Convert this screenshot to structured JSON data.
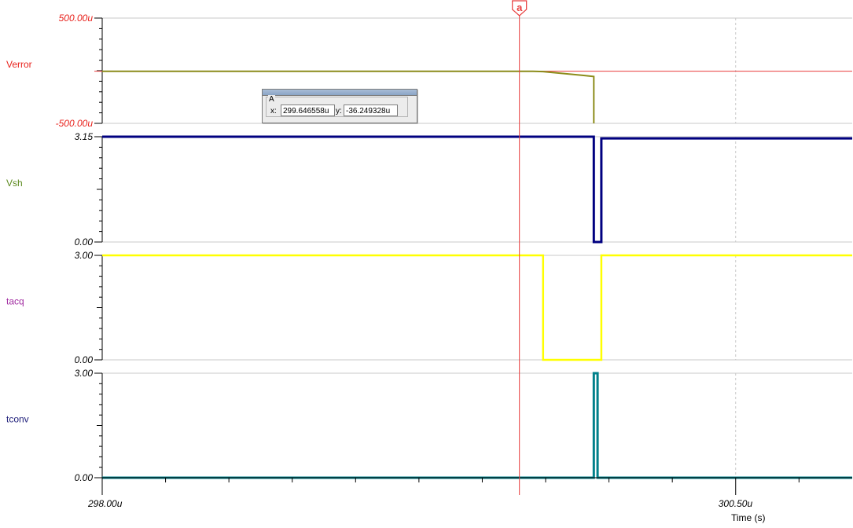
{
  "colors": {
    "verror_label": "#e8221c",
    "vsh_label": "#5c8a1e",
    "tacq_label": "#a02aa0",
    "tconv_label": "#1f1f7a",
    "verror_trace": "#8c8c1a",
    "vsh_trace": "#000080",
    "tacq_trace": "#ffff00",
    "tconv_trace": "#00808a",
    "cursor": "#e83c3c"
  },
  "cursor": {
    "marker": "a",
    "box_title": "A",
    "x_label": "x:",
    "x_value": "299.646558u",
    "y_label": "y:",
    "y_value": "-36.249328u"
  },
  "chart_data": {
    "type": "line",
    "xlabel": "Time (s)",
    "x_unit": "s",
    "xlim": [
      298.0,
      300.96
    ],
    "x_ticks": [
      {
        "value": 298.0,
        "label": "298.00u"
      },
      {
        "value": 300.5,
        "label": "300.50u"
      }
    ],
    "cursor_x": 299.646558,
    "panels": [
      {
        "name": "Verror",
        "ylim": [
          -500,
          500
        ],
        "y_ticks": [
          {
            "value": 500,
            "label": "500.00u"
          },
          {
            "value": -500,
            "label": "-500.00u"
          }
        ],
        "cursor_hline": -5,
        "series": [
          {
            "name": "Verror",
            "points": [
              [
                298.0,
                -5
              ],
              [
                299.7,
                -5
              ],
              [
                299.74,
                -8
              ],
              [
                299.9,
                -45
              ],
              [
                299.94,
                -55
              ],
              [
                299.94,
                -500
              ]
            ]
          }
        ]
      },
      {
        "name": "Vsh",
        "ylim": [
          0,
          3.15
        ],
        "y_ticks": [
          {
            "value": 3.15,
            "label": "3.15"
          },
          {
            "value": 0,
            "label": "0.00"
          }
        ],
        "series": [
          {
            "name": "Vsh",
            "points": [
              [
                298.0,
                3.15
              ],
              [
                299.94,
                3.15
              ],
              [
                299.94,
                0
              ],
              [
                299.97,
                0
              ],
              [
                299.97,
                3.1
              ],
              [
                299.98,
                3.1
              ],
              [
                299.98,
                3.1
              ],
              [
                300.96,
                3.1
              ]
            ]
          }
        ]
      },
      {
        "name": "tacq",
        "ylim": [
          0,
          3.0
        ],
        "y_ticks": [
          {
            "value": 3.0,
            "label": "3.00"
          },
          {
            "value": 0,
            "label": "0.00"
          }
        ],
        "series": [
          {
            "name": "tacq",
            "points": [
              [
                298.0,
                3.0
              ],
              [
                299.74,
                3.0
              ],
              [
                299.74,
                0
              ],
              [
                299.97,
                0
              ],
              [
                299.97,
                3.0
              ],
              [
                300.96,
                3.0
              ]
            ]
          }
        ]
      },
      {
        "name": "tconv",
        "ylim": [
          0,
          3.0
        ],
        "y_ticks": [
          {
            "value": 3.0,
            "label": "3.00"
          },
          {
            "value": 0,
            "label": "0.00"
          }
        ],
        "series": [
          {
            "name": "tconv",
            "points": [
              [
                298.0,
                0
              ],
              [
                299.94,
                0
              ],
              [
                299.94,
                3.0
              ],
              [
                299.955,
                3.0
              ],
              [
                299.955,
                0
              ],
              [
                300.96,
                0
              ]
            ]
          }
        ]
      }
    ]
  }
}
